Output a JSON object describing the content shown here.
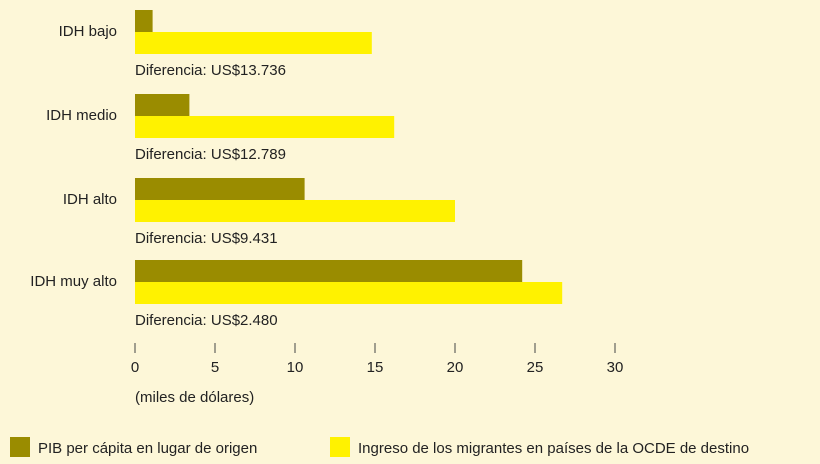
{
  "chart_data": {
    "type": "barh",
    "categories": [
      "IDH bajo",
      "IDH medio",
      "IDH alto",
      "IDH muy alto"
    ],
    "series": [
      {
        "name": "PIB per cápita en lugar de origen",
        "color": "#9a8c00",
        "values": [
          1.1,
          3.4,
          10.6,
          24.2
        ]
      },
      {
        "name": "Ingreso de los migrantes en países de la OCDE de destino",
        "color": "#fff200",
        "values": [
          14.8,
          16.2,
          20.0,
          26.7
        ]
      }
    ],
    "annotations": [
      "Diferencia: US$13.736",
      "Diferencia: US$12.789",
      "Diferencia: US$9.431",
      "Diferencia: US$2.480"
    ],
    "xlabel": "(miles de dólares)",
    "xlim": [
      0,
      30
    ],
    "xticks": [
      0,
      5,
      10,
      15,
      20,
      25,
      30
    ],
    "legend": "bottom"
  }
}
